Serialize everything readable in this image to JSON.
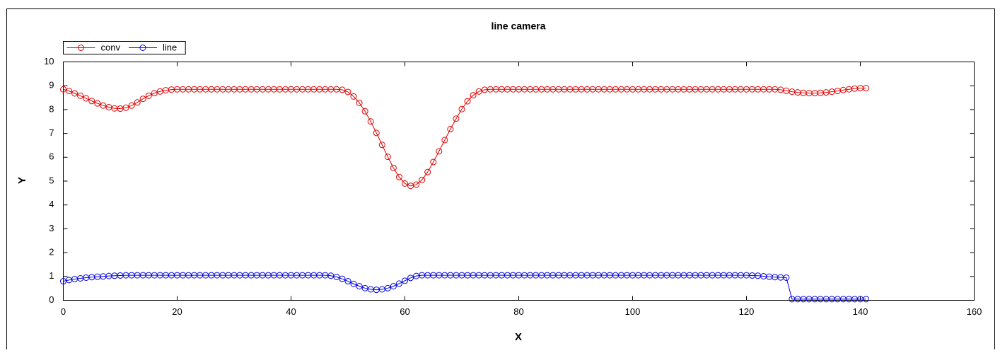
{
  "chart_data": {
    "type": "line",
    "title": "line camera",
    "xlabel": "X",
    "ylabel": "Y",
    "xlim": [
      0,
      160
    ],
    "xticks": [
      0,
      20,
      40,
      60,
      80,
      100,
      120,
      140,
      160
    ],
    "ylim": [
      0,
      10
    ],
    "yticks": [
      0,
      1,
      2,
      3,
      4,
      5,
      6,
      7,
      8,
      9,
      10
    ],
    "legend": "top-left",
    "x": [
      0,
      1,
      2,
      3,
      4,
      5,
      6,
      7,
      8,
      9,
      10,
      11,
      12,
      13,
      14,
      15,
      16,
      17,
      18,
      19,
      20,
      21,
      22,
      23,
      24,
      25,
      26,
      27,
      28,
      29,
      30,
      31,
      32,
      33,
      34,
      35,
      36,
      37,
      38,
      39,
      40,
      41,
      42,
      43,
      44,
      45,
      46,
      47,
      48,
      49,
      50,
      51,
      52,
      53,
      54,
      55,
      56,
      57,
      58,
      59,
      60,
      61,
      62,
      63,
      64,
      65,
      66,
      67,
      68,
      69,
      70,
      71,
      72,
      73,
      74,
      75,
      76,
      77,
      78,
      79,
      80,
      81,
      82,
      83,
      84,
      85,
      86,
      87,
      88,
      89,
      90,
      91,
      92,
      93,
      94,
      95,
      96,
      97,
      98,
      99,
      100,
      101,
      102,
      103,
      104,
      105,
      106,
      107,
      108,
      109,
      110,
      111,
      112,
      113,
      114,
      115,
      116,
      117,
      118,
      119,
      120,
      121,
      122,
      123,
      124,
      125,
      126,
      127,
      128,
      129,
      130,
      131,
      132,
      133,
      134,
      135,
      136,
      137,
      138,
      139,
      140,
      141
    ],
    "series": [
      {
        "name": "conv",
        "color": "#e00000",
        "values": [
          8.85,
          8.78,
          8.68,
          8.58,
          8.47,
          8.36,
          8.26,
          8.17,
          8.1,
          8.05,
          8.04,
          8.08,
          8.17,
          8.3,
          8.45,
          8.58,
          8.69,
          8.76,
          8.81,
          8.84,
          8.85,
          8.85,
          8.85,
          8.85,
          8.85,
          8.85,
          8.85,
          8.85,
          8.85,
          8.85,
          8.85,
          8.85,
          8.85,
          8.85,
          8.85,
          8.85,
          8.85,
          8.85,
          8.85,
          8.85,
          8.85,
          8.85,
          8.85,
          8.85,
          8.85,
          8.85,
          8.85,
          8.85,
          8.85,
          8.83,
          8.74,
          8.55,
          8.28,
          7.93,
          7.5,
          7.02,
          6.52,
          6.02,
          5.55,
          5.17,
          4.9,
          4.8,
          4.85,
          5.05,
          5.38,
          5.8,
          6.25,
          6.72,
          7.18,
          7.62,
          8.02,
          8.35,
          8.6,
          8.76,
          8.83,
          8.85,
          8.85,
          8.85,
          8.85,
          8.85,
          8.85,
          8.85,
          8.85,
          8.85,
          8.85,
          8.85,
          8.85,
          8.85,
          8.85,
          8.85,
          8.85,
          8.85,
          8.85,
          8.85,
          8.85,
          8.85,
          8.85,
          8.85,
          8.85,
          8.85,
          8.85,
          8.85,
          8.85,
          8.85,
          8.85,
          8.85,
          8.85,
          8.85,
          8.85,
          8.85,
          8.85,
          8.85,
          8.85,
          8.85,
          8.85,
          8.85,
          8.85,
          8.85,
          8.85,
          8.85,
          8.85,
          8.85,
          8.85,
          8.85,
          8.85,
          8.85,
          8.83,
          8.79,
          8.75,
          8.72,
          8.7,
          8.69,
          8.69,
          8.7,
          8.72,
          8.75,
          8.78,
          8.82,
          8.85,
          8.88,
          8.9,
          8.9
        ]
      },
      {
        "name": "line",
        "color": "#0000e0",
        "values": [
          0.8,
          0.85,
          0.89,
          0.92,
          0.95,
          0.97,
          0.99,
          1.0,
          1.02,
          1.03,
          1.04,
          1.05,
          1.05,
          1.05,
          1.05,
          1.05,
          1.05,
          1.05,
          1.05,
          1.05,
          1.05,
          1.05,
          1.05,
          1.05,
          1.05,
          1.05,
          1.05,
          1.05,
          1.05,
          1.05,
          1.05,
          1.05,
          1.05,
          1.05,
          1.05,
          1.05,
          1.05,
          1.05,
          1.05,
          1.05,
          1.05,
          1.05,
          1.05,
          1.05,
          1.05,
          1.05,
          1.05,
          1.03,
          0.98,
          0.9,
          0.8,
          0.69,
          0.59,
          0.51,
          0.46,
          0.44,
          0.46,
          0.51,
          0.59,
          0.7,
          0.82,
          0.94,
          1.02,
          1.05,
          1.05,
          1.05,
          1.05,
          1.05,
          1.05,
          1.05,
          1.05,
          1.05,
          1.05,
          1.05,
          1.05,
          1.05,
          1.05,
          1.05,
          1.05,
          1.05,
          1.05,
          1.05,
          1.05,
          1.05,
          1.05,
          1.05,
          1.05,
          1.05,
          1.05,
          1.05,
          1.05,
          1.05,
          1.05,
          1.05,
          1.05,
          1.05,
          1.05,
          1.05,
          1.05,
          1.05,
          1.05,
          1.05,
          1.05,
          1.05,
          1.05,
          1.05,
          1.05,
          1.05,
          1.05,
          1.05,
          1.05,
          1.05,
          1.05,
          1.05,
          1.05,
          1.05,
          1.05,
          1.05,
          1.05,
          1.05,
          1.05,
          1.04,
          1.03,
          1.01,
          0.99,
          0.97,
          0.96,
          0.95,
          0.05,
          0.05,
          0.05,
          0.05,
          0.05,
          0.05,
          0.05,
          0.05,
          0.05,
          0.05,
          0.05,
          0.05,
          0.05,
          0.05
        ]
      }
    ]
  }
}
